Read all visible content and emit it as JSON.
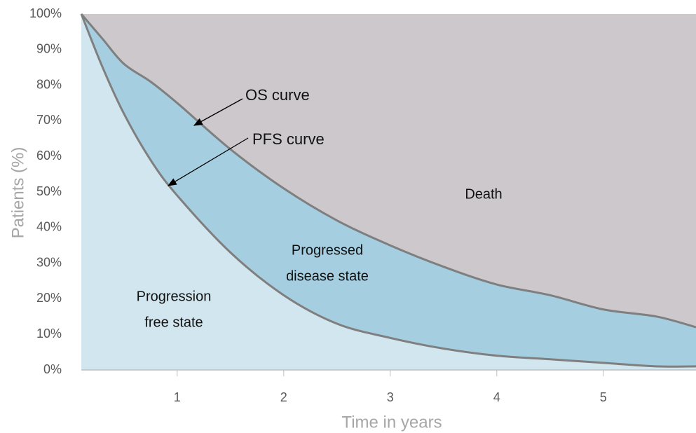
{
  "chart_data": {
    "type": "partitioned-area",
    "x_label": "Time in years",
    "y_label": "Patients (%)",
    "x": [
      0.1,
      0.3,
      0.5,
      0.75,
      1,
      1.5,
      2,
      2.5,
      3,
      3.5,
      4,
      4.5,
      5,
      5.5,
      5.87
    ],
    "series": [
      {
        "name": "OS curve",
        "color": "#7f7f7f",
        "values": [
          100,
          93,
          86,
          81,
          75,
          62,
          51,
          42,
          35,
          29,
          24,
          21,
          17,
          15,
          12
        ]
      },
      {
        "name": "PFS curve",
        "color": "#7f7f7f",
        "values": [
          100,
          85,
          72,
          59,
          49,
          33,
          21,
          13,
          9,
          6,
          4,
          3,
          2,
          1,
          1
        ]
      }
    ],
    "regions": [
      {
        "label": [
          "Death"
        ],
        "color": "#ccc8cb"
      },
      {
        "label": [
          "Progressed",
          "disease state"
        ],
        "color": "#a5cee0"
      },
      {
        "label": [
          "Progression",
          "free state"
        ],
        "color": "#d1e6ee"
      }
    ],
    "xlim": [
      0.1,
      5.87
    ],
    "xticks": [
      1,
      2,
      3,
      4,
      5
    ],
    "ylim": [
      0,
      100
    ],
    "yticks": [
      {
        "value": 0,
        "label": "0%"
      },
      {
        "value": 10,
        "label": "10%"
      },
      {
        "value": 20,
        "label": "20%"
      },
      {
        "value": 30,
        "label": "30%"
      },
      {
        "value": 40,
        "label": "40%"
      },
      {
        "value": 50,
        "label": "50%"
      },
      {
        "value": 60,
        "label": "60%"
      },
      {
        "value": 70,
        "label": "70%"
      },
      {
        "value": 80,
        "label": "80%"
      },
      {
        "value": 90,
        "label": "90%"
      },
      {
        "value": 100,
        "label": "100%"
      }
    ]
  }
}
